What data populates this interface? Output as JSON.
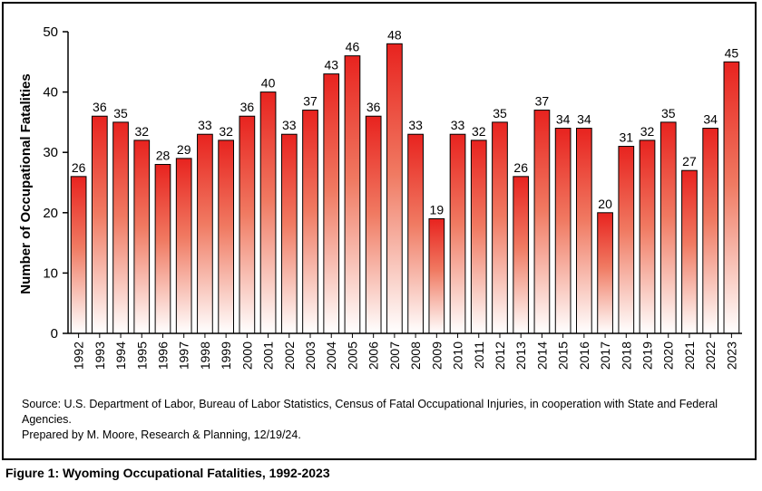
{
  "chart_data": {
    "type": "bar",
    "categories": [
      "1992",
      "1993",
      "1994",
      "1995",
      "1996",
      "1997",
      "1998",
      "1999",
      "2000",
      "2001",
      "2002",
      "2003",
      "2004",
      "2005",
      "2006",
      "2007",
      "2008",
      "2009",
      "2010",
      "2011",
      "2012",
      "2013",
      "2014",
      "2015",
      "2016",
      "2017",
      "2018",
      "2019",
      "2020",
      "2021",
      "2022",
      "2023"
    ],
    "values": [
      26,
      36,
      35,
      32,
      28,
      29,
      33,
      32,
      36,
      40,
      33,
      37,
      43,
      46,
      36,
      48,
      33,
      19,
      33,
      32,
      35,
      26,
      37,
      34,
      34,
      20,
      31,
      32,
      35,
      27,
      34,
      45
    ],
    "ylabel": "Number of Occupational Fatalities",
    "xlabel": "",
    "ylim": [
      0,
      50
    ],
    "yticks": [
      0,
      10,
      20,
      30,
      40,
      50
    ],
    "grid": false,
    "data_labels": true,
    "colors": {
      "bar_top": "#e8231f",
      "bar_bottom": "#ffffff",
      "bar_outline": "#000000"
    }
  },
  "source_lines": [
    "Source: U.S. Department of Labor, Bureau of Labor Statistics, Census of Fatal Occupational Injuries, in cooperation with State and Federal Agencies.",
    "Prepared by M. Moore, Research & Planning, 12/19/24."
  ],
  "caption": "Figure 1: Wyoming Occupational Fatalities, 1992-2023"
}
